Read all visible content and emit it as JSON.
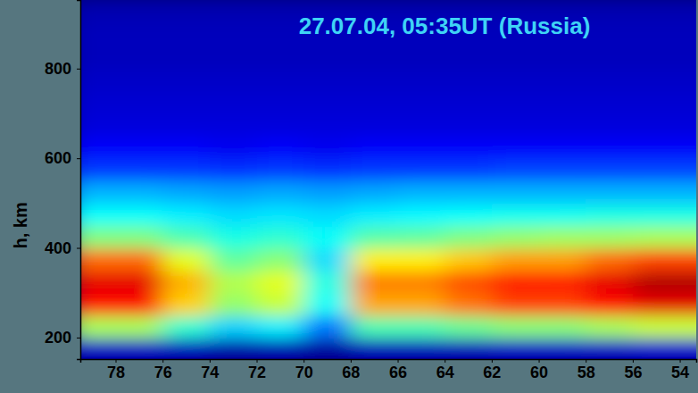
{
  "chart_data": {
    "type": "heatmap",
    "title": "27.07.04, 05:35UT (Russia)",
    "y_label": "h, km",
    "x": [
      79,
      77,
      75,
      73,
      71,
      69,
      67,
      65,
      63,
      61,
      59,
      57,
      55,
      53
    ],
    "y": [
      175,
      225,
      275,
      325,
      375,
      425,
      475,
      525,
      575,
      625,
      675,
      725,
      775,
      825,
      875,
      925
    ],
    "z": [
      [
        0.7,
        0.7,
        0.6,
        0.4,
        0.5,
        0.3,
        0.6,
        0.6,
        0.6,
        0.7,
        0.7,
        0.7,
        0.8,
        0.8
      ],
      [
        5.4,
        5.4,
        4.2,
        3.3,
        3.6,
        2.4,
        4.5,
        4.5,
        4.8,
        5.1,
        5.1,
        5.4,
        5.7,
        5.7
      ],
      [
        8.6,
        8.6,
        6.7,
        5.2,
        5.7,
        3.8,
        7.1,
        7.1,
        7.6,
        8.1,
        8.1,
        8.6,
        9.0,
        9.0
      ],
      [
        9.0,
        9.0,
        7.0,
        5.5,
        6.0,
        4.0,
        7.5,
        7.5,
        8.0,
        8.5,
        8.5,
        9.0,
        9.5,
        9.5
      ],
      [
        7.7,
        7.7,
        6.0,
        4.7,
        5.1,
        3.4,
        6.4,
        6.4,
        6.8,
        7.2,
        7.2,
        7.7,
        8.1,
        8.1
      ],
      [
        5.0,
        5.0,
        4.5,
        4.0,
        4.2,
        3.8,
        4.6,
        4.7,
        5.0,
        5.2,
        5.3,
        5.3,
        5.4,
        5.4
      ],
      [
        3.8,
        3.8,
        3.6,
        3.4,
        3.5,
        3.4,
        3.6,
        3.7,
        3.8,
        3.9,
        3.9,
        4.0,
        4.0,
        4.0
      ],
      [
        3.0,
        3.0,
        2.9,
        2.8,
        2.9,
        2.8,
        2.9,
        3.0,
        3.0,
        3.0,
        3.0,
        3.0,
        3.0,
        3.0
      ],
      [
        1.8,
        1.8,
        1.8,
        1.7,
        1.8,
        1.7,
        1.8,
        1.8,
        1.8,
        1.9,
        1.9,
        1.9,
        1.9,
        1.9
      ],
      [
        1.2,
        1.2,
        1.2,
        1.1,
        1.2,
        1.1,
        1.2,
        1.2,
        1.2,
        1.2,
        1.2,
        1.2,
        1.2,
        1.2
      ],
      [
        0.9,
        0.9,
        0.9,
        0.9,
        0.9,
        0.9,
        0.9,
        0.9,
        0.9,
        0.9,
        0.9,
        0.9,
        0.9,
        0.9
      ],
      [
        0.8,
        0.8,
        0.8,
        0.8,
        0.8,
        0.8,
        0.8,
        0.8,
        0.8,
        0.8,
        0.8,
        0.8,
        0.8,
        0.8
      ],
      [
        0.7,
        0.7,
        0.7,
        0.7,
        0.7,
        0.7,
        0.7,
        0.7,
        0.7,
        0.7,
        0.7,
        0.7,
        0.7,
        0.7
      ],
      [
        0.6,
        0.6,
        0.6,
        0.6,
        0.6,
        0.6,
        0.6,
        0.6,
        0.6,
        0.6,
        0.6,
        0.6,
        0.6,
        0.6
      ],
      [
        0.6,
        0.6,
        0.6,
        0.6,
        0.6,
        0.6,
        0.6,
        0.6,
        0.6,
        0.6,
        0.6,
        0.6,
        0.6,
        0.6
      ],
      [
        0.5,
        0.5,
        0.5,
        0.5,
        0.5,
        0.5,
        0.5,
        0.5,
        0.5,
        0.5,
        0.5,
        0.5,
        0.5,
        0.5
      ]
    ],
    "zlim": [
      0,
      10
    ],
    "xlim": [
      79.5,
      53.3
    ],
    "ylim": [
      152,
      953
    ],
    "xticks": [
      78,
      76,
      74,
      72,
      70,
      68,
      66,
      64,
      62,
      60,
      58,
      56,
      54
    ],
    "yticks": [
      200,
      400,
      600,
      800
    ]
  }
}
